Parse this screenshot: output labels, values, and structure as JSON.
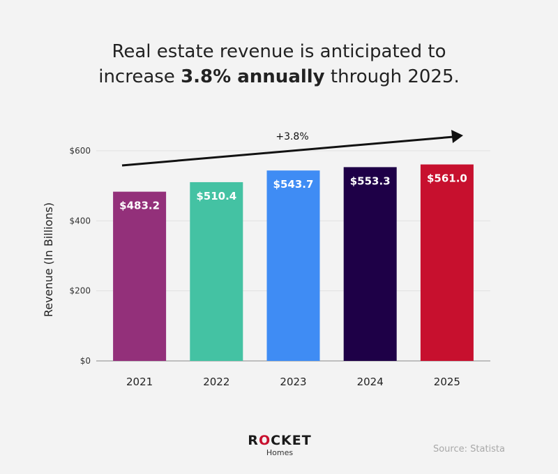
{
  "title": {
    "line1": "Real estate revenue is anticipated to",
    "line2_before": "increase ",
    "line2_bold": "3.8% annually",
    "line2_after": " through 2025."
  },
  "chart_data": {
    "type": "bar",
    "categories": [
      "2021",
      "2022",
      "2023",
      "2024",
      "2025"
    ],
    "values": [
      483.2,
      510.4,
      543.7,
      553.3,
      561.0
    ],
    "value_labels": [
      "$483.2",
      "$510.4",
      "$543.7",
      "$553.3",
      "$561.0"
    ],
    "colors": [
      "#93307a",
      "#44c2a3",
      "#3f8cf4",
      "#1e0047",
      "#c7102e"
    ],
    "ylabel": "Revenue (In Billions)",
    "yticks": [
      0,
      200,
      400,
      600
    ],
    "ytick_labels": [
      "$0",
      "$200",
      "$400",
      "$600"
    ],
    "ylim": [
      0,
      600
    ],
    "grid": true,
    "annotation": "+3.8%"
  },
  "branding": {
    "brand_r": "R",
    "brand_o": "O",
    "brand_rest": "CKET",
    "sub": "Homes"
  },
  "source": "Source: Statista"
}
